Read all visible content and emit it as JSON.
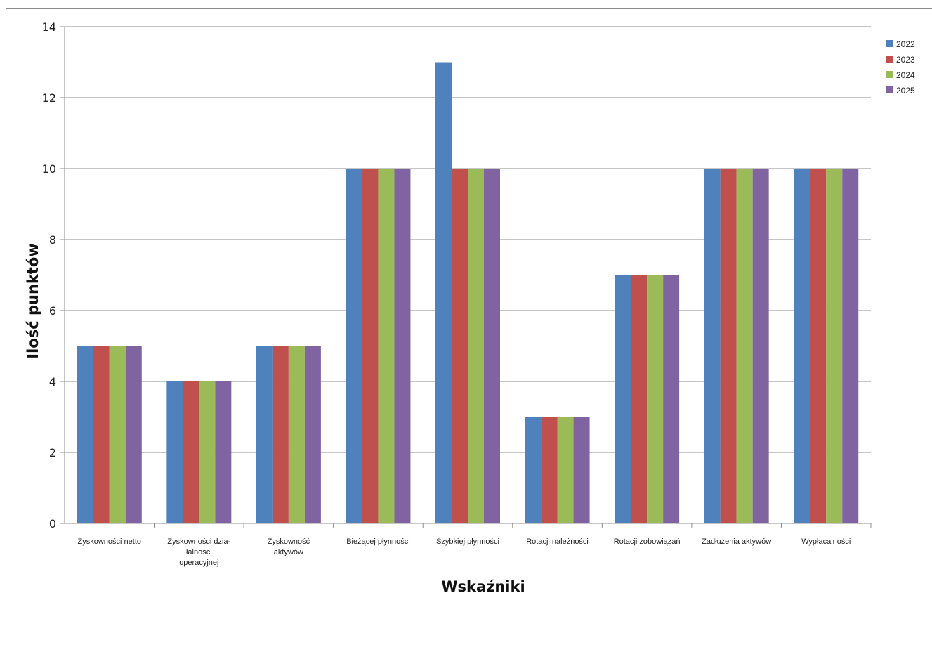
{
  "chart_data": {
    "type": "bar",
    "title": "",
    "xlabel": "Wskaźniki",
    "ylabel": "Ilość punktów",
    "ylim": [
      0,
      14
    ],
    "yticks": [
      0,
      2,
      4,
      6,
      8,
      10,
      12,
      14
    ],
    "grid": true,
    "legend_position": "top-right",
    "categories": [
      "Zyskowności  netto",
      "Zyskowności dzia-\nłalności\noperacyjnej",
      "Zyskowność\naktywów",
      "Bieżącej płynności",
      "Szybkiej płynności",
      "Rotacji należności",
      "Rotacji zobowiązań",
      "Zadłużenia aktywów",
      "Wypłacalności"
    ],
    "series": [
      {
        "name": "2022",
        "color": "#4F81BD",
        "values": [
          5,
          4,
          5,
          10,
          13,
          3,
          7,
          10,
          10
        ]
      },
      {
        "name": "2023",
        "color": "#C0504D",
        "values": [
          5,
          4,
          5,
          10,
          10,
          3,
          7,
          10,
          10
        ]
      },
      {
        "name": "2024",
        "color": "#9BBB59",
        "values": [
          5,
          4,
          5,
          10,
          10,
          3,
          7,
          10,
          10
        ]
      },
      {
        "name": "2025",
        "color": "#8064A2",
        "values": [
          5,
          4,
          5,
          10,
          10,
          3,
          7,
          10,
          10
        ]
      }
    ]
  }
}
